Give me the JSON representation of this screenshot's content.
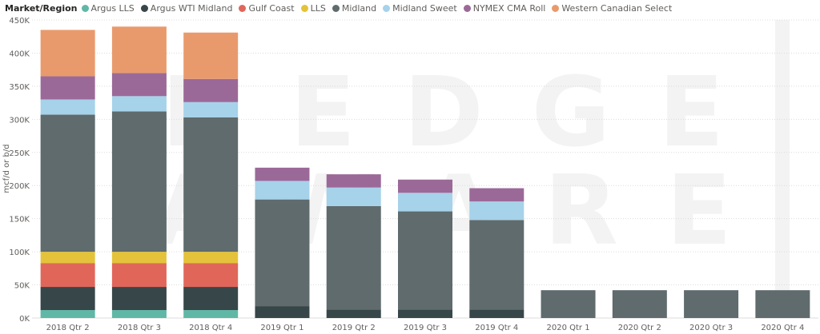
{
  "chart_data": {
    "type": "bar",
    "stacked": true,
    "legend_title": "Market/Region",
    "legend_position": "top-left",
    "ylabel": "mcf/d or b/d",
    "xlabel": "",
    "ylim": [
      0,
      450000
    ],
    "y_ticks": [
      0,
      50000,
      100000,
      150000,
      200000,
      250000,
      300000,
      350000,
      400000,
      450000
    ],
    "y_tick_labels": [
      "0K",
      "50K",
      "100K",
      "150K",
      "200K",
      "250K",
      "300K",
      "350K",
      "400K",
      "450K"
    ],
    "grid": true,
    "watermark": "HEDGE AWARE",
    "categories": [
      "2018 Qtr 2",
      "2018 Qtr 3",
      "2018 Qtr 4",
      "2019 Qtr 1",
      "2019 Qtr 2",
      "2019 Qtr 3",
      "2019 Qtr 4",
      "2020 Qtr 1",
      "2020 Qtr 2",
      "2020 Qtr 3",
      "2020 Qtr 4"
    ],
    "series": [
      {
        "name": "Argus LLS",
        "color": "#5fb8a5",
        "values": [
          12000,
          12000,
          12000,
          0,
          0,
          0,
          0,
          0,
          0,
          0,
          0
        ]
      },
      {
        "name": "Argus WTI Midland",
        "color": "#374649",
        "values": [
          35000,
          35000,
          35000,
          18000,
          13000,
          13000,
          13000,
          0,
          0,
          0,
          0
        ]
      },
      {
        "name": "Gulf Coast",
        "color": "#e1665a",
        "values": [
          36000,
          36000,
          36000,
          0,
          0,
          0,
          0,
          0,
          0,
          0,
          0
        ]
      },
      {
        "name": "LLS",
        "color": "#e4c33a",
        "values": [
          17000,
          17000,
          17000,
          0,
          0,
          0,
          0,
          0,
          0,
          0,
          0
        ]
      },
      {
        "name": "Midland",
        "color": "#5f6b6d",
        "values": [
          207000,
          212000,
          203000,
          161000,
          156000,
          148000,
          135000,
          42000,
          42000,
          42000,
          42000
        ]
      },
      {
        "name": "Midland Sweet",
        "color": "#a6d2ea",
        "values": [
          23000,
          23000,
          23000,
          28000,
          28000,
          28000,
          28000,
          0,
          0,
          0,
          0
        ]
      },
      {
        "name": "NYMEX CMA Roll",
        "color": "#9b6998",
        "values": [
          35000,
          35000,
          35000,
          20000,
          20000,
          20000,
          20000,
          0,
          0,
          0,
          0
        ]
      },
      {
        "name": "Western Canadian Select",
        "color": "#e99a6c",
        "values": [
          70000,
          70000,
          70000,
          0,
          0,
          0,
          0,
          0,
          0,
          0,
          0
        ]
      }
    ]
  }
}
